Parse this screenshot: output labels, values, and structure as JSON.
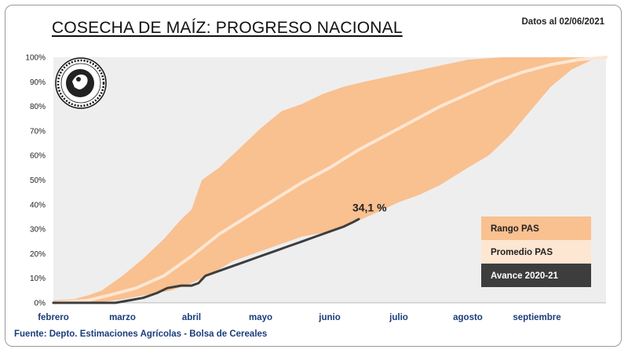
{
  "header": {
    "title": "COSECHA DE MAÍZ: PROGRESO NACIONAL",
    "date_note": "Datos al 02/06/2021"
  },
  "footer": {
    "source": "Fuente: Depto. Estimaciones Agrícolas - Bolsa de Cereales"
  },
  "colors": {
    "range": "#f9c090",
    "average": "#fde6d2",
    "current": "#3d3d3d",
    "plot_bg": "#eeeeee"
  },
  "chart_data": {
    "type": "area",
    "title": "COSECHA DE MAÍZ: PROGRESO NACIONAL",
    "x_categories": [
      "febrero",
      "marzo",
      "abril",
      "mayo",
      "junio",
      "julio",
      "agosto",
      "septiembre"
    ],
    "xlim": [
      0,
      8
    ],
    "ylim": [
      0,
      100
    ],
    "y_ticks": [
      "0%",
      "10%",
      "20%",
      "30%",
      "40%",
      "50%",
      "60%",
      "70%",
      "80%",
      "90%",
      "100%"
    ],
    "grid": false,
    "legend_position": "right",
    "series": [
      {
        "name": "Rango PAS",
        "kind": "band",
        "upper": [
          [
            0,
            1
          ],
          [
            0.3,
            1.5
          ],
          [
            0.5,
            3
          ],
          [
            0.7,
            5
          ],
          [
            1.0,
            11
          ],
          [
            1.3,
            18
          ],
          [
            1.6,
            26
          ],
          [
            1.85,
            34
          ],
          [
            2.0,
            38
          ],
          [
            2.15,
            50
          ],
          [
            2.4,
            55
          ],
          [
            2.7,
            63
          ],
          [
            3.0,
            71
          ],
          [
            3.3,
            78
          ],
          [
            3.6,
            81
          ],
          [
            3.9,
            85
          ],
          [
            4.2,
            88
          ],
          [
            4.5,
            90
          ],
          [
            5.0,
            93
          ],
          [
            5.5,
            96
          ],
          [
            6.0,
            99
          ],
          [
            6.5,
            100
          ],
          [
            8.0,
            100
          ]
        ],
        "lower": [
          [
            0,
            0
          ],
          [
            0.6,
            0
          ],
          [
            0.9,
            1
          ],
          [
            1.3,
            3
          ],
          [
            1.7,
            5
          ],
          [
            2.0,
            8
          ],
          [
            2.3,
            12
          ],
          [
            2.6,
            17
          ],
          [
            3.0,
            21
          ],
          [
            3.3,
            24
          ],
          [
            3.6,
            27
          ],
          [
            4.0,
            29
          ],
          [
            4.3,
            32
          ],
          [
            4.7,
            37
          ],
          [
            5.0,
            41
          ],
          [
            5.3,
            44
          ],
          [
            5.6,
            48
          ],
          [
            6.0,
            55
          ],
          [
            6.3,
            60
          ],
          [
            6.6,
            68
          ],
          [
            6.9,
            78
          ],
          [
            7.2,
            88
          ],
          [
            7.5,
            95
          ],
          [
            7.8,
            99
          ],
          [
            8.0,
            100
          ]
        ]
      },
      {
        "name": "Promedio PAS",
        "kind": "line",
        "points": [
          [
            0,
            0
          ],
          [
            0.5,
            1
          ],
          [
            0.8,
            3
          ],
          [
            1.2,
            6
          ],
          [
            1.6,
            11
          ],
          [
            2.0,
            19
          ],
          [
            2.4,
            28
          ],
          [
            2.8,
            35
          ],
          [
            3.2,
            42
          ],
          [
            3.6,
            49
          ],
          [
            4.0,
            55
          ],
          [
            4.4,
            62
          ],
          [
            4.8,
            68
          ],
          [
            5.2,
            74
          ],
          [
            5.6,
            80
          ],
          [
            6.0,
            85
          ],
          [
            6.4,
            90
          ],
          [
            6.8,
            94
          ],
          [
            7.2,
            97
          ],
          [
            7.6,
            99
          ],
          [
            8.0,
            100
          ]
        ]
      },
      {
        "name": "Avance 2020-21",
        "kind": "line",
        "points": [
          [
            0,
            0
          ],
          [
            0.5,
            0
          ],
          [
            0.9,
            0
          ],
          [
            1.1,
            1
          ],
          [
            1.3,
            2
          ],
          [
            1.5,
            4
          ],
          [
            1.65,
            6
          ],
          [
            1.85,
            7
          ],
          [
            2.0,
            7
          ],
          [
            2.1,
            8
          ],
          [
            2.2,
            11
          ],
          [
            2.4,
            13
          ],
          [
            2.6,
            15
          ],
          [
            2.8,
            17
          ],
          [
            3.0,
            19
          ],
          [
            3.2,
            21
          ],
          [
            3.4,
            23
          ],
          [
            3.6,
            25
          ],
          [
            3.8,
            27
          ],
          [
            4.0,
            29
          ],
          [
            4.2,
            31
          ],
          [
            4.35,
            33
          ],
          [
            4.42,
            34.1
          ]
        ]
      }
    ],
    "annotations": [
      {
        "text": "34,1 %",
        "x": 4.42,
        "y": 34.1
      }
    ],
    "legend": [
      "Rango PAS",
      "Promedio PAS",
      "Avance 2020-21"
    ]
  }
}
